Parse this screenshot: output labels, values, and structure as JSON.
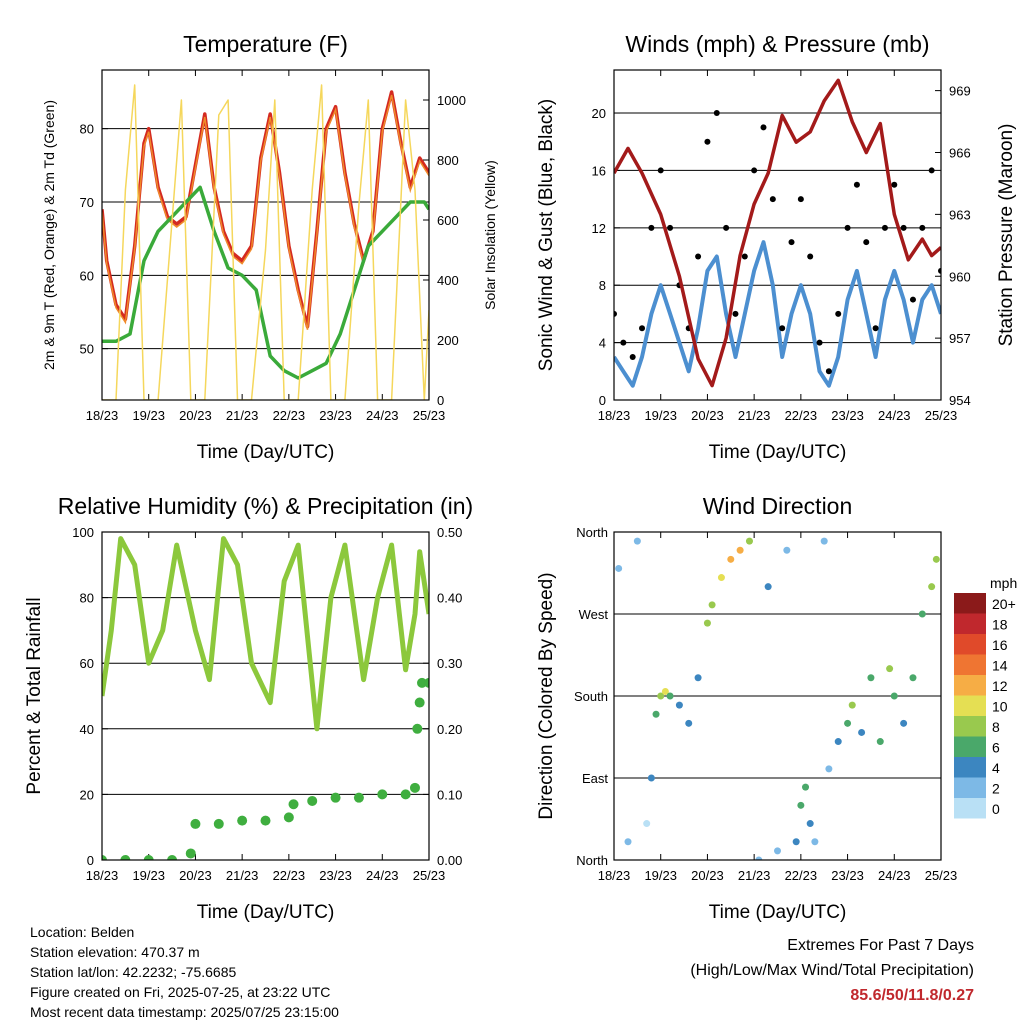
{
  "footer": {
    "location": "Location: Belden",
    "elevation": "Station elevation: 470.37 m",
    "latlon": "Station lat/lon: 42.2232; -75.6685",
    "created": "Figure created on Fri, 2025-07-25, at 23:22 UTC",
    "recent": "Most recent data timestamp: 2025/07/25 23:15:00"
  },
  "extremes": {
    "title": "Extremes For Past 7 Days",
    "subtitle": "(High/Low/Max Wind/Total Precipitation)",
    "values": "85.6/50/11.8/0.27"
  },
  "colors": {
    "temp2m": "#d42a20",
    "temp9m": "#f08a2a",
    "dewpoint": "#3aaa3a",
    "solar": "#f5d75c",
    "wind": "#4c8fd0",
    "gust": "#000000",
    "pressure": "#a31a1a",
    "rh": "#8cc83c",
    "precip": "#3fae3f"
  },
  "chart_data": [
    {
      "type": "line",
      "title": "Temperature (F)",
      "xlabel": "Time (Day/UTC)",
      "ylabel": "2m & 9m T (Red, Orange) & 2m Td (Green)",
      "y2label": "Solar Insolation (Yellow)",
      "x_ticks": [
        "18/23",
        "19/23",
        "20/23",
        "21/23",
        "22/23",
        "23/23",
        "24/23",
        "25/23"
      ],
      "ylim": [
        43,
        88
      ],
      "y_ticks": [
        50,
        60,
        70,
        80
      ],
      "y2lim": [
        0,
        1100
      ],
      "y2_ticks": [
        0,
        200,
        400,
        600,
        800,
        1000
      ],
      "series": [
        {
          "key": "t2m",
          "axis": "y",
          "x": [
            0,
            0.1,
            0.3,
            0.5,
            0.7,
            0.9,
            1.0,
            1.2,
            1.4,
            1.6,
            1.8,
            2.0,
            2.2,
            2.4,
            2.6,
            2.8,
            3.0,
            3.2,
            3.4,
            3.6,
            3.8,
            4.0,
            4.2,
            4.4,
            4.6,
            4.8,
            5.0,
            5.2,
            5.4,
            5.6,
            5.8,
            6.0,
            6.2,
            6.4,
            6.6,
            6.8,
            7.0
          ],
          "values": [
            69,
            62,
            56,
            54,
            64,
            78,
            80,
            72,
            68,
            67,
            68,
            75,
            82,
            72,
            66,
            63,
            62,
            64,
            76,
            82,
            74,
            64,
            58,
            53,
            66,
            80,
            83,
            74,
            67,
            62,
            66,
            80,
            85,
            78,
            72,
            76,
            74
          ]
        },
        {
          "key": "dew",
          "axis": "y",
          "x": [
            0,
            0.3,
            0.6,
            0.9,
            1.2,
            1.5,
            1.8,
            2.1,
            2.4,
            2.7,
            3.0,
            3.3,
            3.6,
            3.9,
            4.2,
            4.5,
            4.8,
            5.1,
            5.4,
            5.7,
            6.0,
            6.3,
            6.6,
            6.9,
            7.0
          ],
          "values": [
            51,
            51,
            52,
            62,
            66,
            68,
            70,
            72,
            66,
            61,
            60,
            58,
            49,
            47,
            46,
            47,
            48,
            52,
            58,
            64,
            66,
            68,
            70,
            70,
            69
          ]
        },
        {
          "key": "solar",
          "axis": "y2",
          "x": [
            0.0,
            0.3,
            0.5,
            0.7,
            0.9,
            1.2,
            1.5,
            1.7,
            1.9,
            2.2,
            2.5,
            2.7,
            2.9,
            3.2,
            3.5,
            3.7,
            3.9,
            4.2,
            4.5,
            4.7,
            4.9,
            5.2,
            5.5,
            5.7,
            5.9,
            6.2,
            6.5,
            6.7,
            6.9,
            7.0
          ],
          "values": [
            0,
            0,
            700,
            1050,
            0,
            0,
            600,
            1000,
            0,
            0,
            950,
            1000,
            0,
            0,
            500,
            1000,
            0,
            0,
            700,
            1050,
            0,
            0,
            650,
            1000,
            0,
            0,
            1000,
            700,
            0,
            300
          ]
        }
      ]
    },
    {
      "type": "line",
      "title": "Winds (mph) & Pressure (mb)",
      "xlabel": "Time (Day/UTC)",
      "ylabel": "Sonic Wind & Gust (Blue, Black)",
      "y2label": "Station Pressure (Maroon)",
      "x_ticks": [
        "18/23",
        "19/23",
        "20/23",
        "21/23",
        "22/23",
        "23/23",
        "24/23",
        "25/23"
      ],
      "ylim": [
        0,
        23
      ],
      "y_ticks": [
        0,
        4,
        8,
        12,
        16,
        20
      ],
      "y2lim": [
        954,
        970
      ],
      "y2_ticks": [
        954,
        957,
        960,
        963,
        966,
        969
      ],
      "series": [
        {
          "key": "wind",
          "axis": "y",
          "x": [
            0,
            0.2,
            0.4,
            0.6,
            0.8,
            1.0,
            1.2,
            1.4,
            1.6,
            1.8,
            2.0,
            2.2,
            2.4,
            2.6,
            2.8,
            3.0,
            3.2,
            3.4,
            3.6,
            3.8,
            4.0,
            4.2,
            4.4,
            4.6,
            4.8,
            5.0,
            5.2,
            5.4,
            5.6,
            5.8,
            6.0,
            6.2,
            6.4,
            6.6,
            6.8,
            7.0
          ],
          "values": [
            3,
            2,
            1,
            3,
            6,
            8,
            6,
            4,
            2,
            5,
            9,
            10,
            6,
            3,
            6,
            9,
            11,
            8,
            3,
            6,
            8,
            6,
            2,
            1,
            3,
            7,
            9,
            6,
            3,
            7,
            9,
            7,
            4,
            7,
            8,
            6
          ]
        },
        {
          "key": "gust",
          "axis": "y",
          "x": [
            0,
            0.2,
            0.4,
            0.6,
            0.8,
            1.0,
            1.2,
            1.4,
            1.6,
            1.8,
            2.0,
            2.2,
            2.4,
            2.6,
            2.8,
            3.0,
            3.2,
            3.4,
            3.6,
            3.8,
            4.0,
            4.2,
            4.4,
            4.6,
            4.8,
            5.0,
            5.2,
            5.4,
            5.6,
            5.8,
            6.0,
            6.2,
            6.4,
            6.6,
            6.8,
            7.0
          ],
          "values": [
            6,
            4,
            3,
            5,
            12,
            16,
            12,
            8,
            5,
            10,
            18,
            20,
            12,
            6,
            10,
            16,
            19,
            14,
            5,
            11,
            14,
            10,
            4,
            2,
            6,
            12,
            15,
            11,
            5,
            12,
            15,
            12,
            7,
            12,
            16,
            9
          ]
        },
        {
          "key": "pressure",
          "axis": "y2",
          "x": [
            0,
            0.3,
            0.6,
            1.0,
            1.4,
            1.8,
            2.1,
            2.4,
            2.7,
            3.0,
            3.3,
            3.6,
            3.9,
            4.2,
            4.5,
            4.8,
            5.1,
            5.4,
            5.7,
            6.0,
            6.3,
            6.6,
            6.8,
            7.0
          ],
          "values": [
            965,
            966.2,
            965,
            963,
            960,
            956,
            954.7,
            957,
            961,
            963.5,
            965,
            967.8,
            966.5,
            967,
            968.5,
            969.5,
            967.5,
            966,
            967.4,
            963,
            960.8,
            961.8,
            961,
            961.4
          ]
        }
      ]
    },
    {
      "type": "line",
      "title": "Relative Humidity (%) & Precipitation (in)",
      "xlabel": "Time (Day/UTC)",
      "ylabel": "Percent & Total Rainfall",
      "x_ticks": [
        "18/23",
        "19/23",
        "20/23",
        "21/23",
        "22/23",
        "23/23",
        "24/23",
        "25/23"
      ],
      "ylim": [
        0,
        100
      ],
      "y_ticks": [
        0,
        20,
        40,
        60,
        80,
        100
      ],
      "y2lim": [
        0,
        0.5
      ],
      "y2_ticks": [
        "0.00",
        "0.10",
        "0.20",
        "0.30",
        "0.40",
        "0.50"
      ],
      "series": [
        {
          "key": "rh",
          "axis": "y",
          "x": [
            0,
            0.2,
            0.4,
            0.7,
            1.0,
            1.3,
            1.6,
            2.0,
            2.3,
            2.6,
            2.9,
            3.2,
            3.6,
            3.9,
            4.2,
            4.6,
            4.9,
            5.2,
            5.6,
            5.9,
            6.2,
            6.5,
            6.7,
            6.8,
            7.0
          ],
          "values": [
            50,
            70,
            98,
            90,
            60,
            70,
            96,
            70,
            55,
            98,
            90,
            60,
            48,
            85,
            96,
            40,
            80,
            96,
            55,
            80,
            96,
            58,
            75,
            94,
            75
          ]
        },
        {
          "key": "precip",
          "axis": "y2",
          "x": [
            0,
            0.5,
            1.0,
            1.5,
            1.9,
            2.0,
            2.5,
            3.0,
            3.5,
            4.0,
            4.1,
            4.5,
            5.0,
            5.5,
            6.0,
            6.5,
            6.7,
            6.75,
            6.8,
            6.85,
            7.0
          ],
          "values": [
            0,
            0,
            0,
            0,
            0.01,
            0.055,
            0.055,
            0.06,
            0.06,
            0.065,
            0.085,
            0.09,
            0.095,
            0.095,
            0.1,
            0.1,
            0.11,
            0.2,
            0.24,
            0.27,
            0.27
          ]
        }
      ]
    },
    {
      "type": "scatter",
      "title": "Wind Direction",
      "xlabel": "Time (Day/UTC)",
      "ylabel": "Direction (Colored By Speed)",
      "x_ticks": [
        "18/23",
        "19/23",
        "20/23",
        "21/23",
        "22/23",
        "23/23",
        "24/23",
        "25/23"
      ],
      "y_ticks": [
        "North",
        "East",
        "South",
        "West",
        "North"
      ],
      "ylim": [
        0,
        360
      ],
      "legend_title": "mph",
      "legend": [
        {
          "label": "20+",
          "color": "#8b1a1a"
        },
        {
          "label": "18",
          "color": "#c0282d"
        },
        {
          "label": "16",
          "color": "#e04a2a"
        },
        {
          "label": "14",
          "color": "#ef7532"
        },
        {
          "label": "12",
          "color": "#f6ad45"
        },
        {
          "label": "10",
          "color": "#e5df53"
        },
        {
          "label": "8",
          "color": "#99c94e"
        },
        {
          "label": "6",
          "color": "#4aa86a"
        },
        {
          "label": "4",
          "color": "#3c86c0"
        },
        {
          "label": "2",
          "color": "#7db9e6"
        },
        {
          "label": "0",
          "color": "#b9e0f5"
        }
      ],
      "series": [
        {
          "key": "dir",
          "x": [
            0.1,
            0.3,
            0.5,
            0.7,
            0.8,
            0.9,
            1.0,
            1.1,
            1.2,
            1.4,
            1.6,
            1.8,
            2.0,
            2.1,
            2.3,
            2.5,
            2.7,
            2.9,
            3.1,
            3.3,
            3.5,
            3.7,
            3.9,
            4.0,
            4.1,
            4.2,
            4.3,
            4.5,
            4.6,
            4.8,
            5.0,
            5.1,
            5.3,
            5.5,
            5.7,
            5.9,
            6.0,
            6.2,
            6.4,
            6.6,
            6.8,
            6.9
          ],
          "values": [
            320,
            20,
            350,
            40,
            90,
            160,
            180,
            185,
            180,
            170,
            150,
            200,
            260,
            280,
            310,
            330,
            340,
            350,
            0,
            300,
            10,
            340,
            20,
            60,
            80,
            40,
            20,
            350,
            100,
            130,
            150,
            170,
            140,
            200,
            130,
            210,
            180,
            150,
            200,
            270,
            300,
            330
          ],
          "speeds": [
            2,
            1,
            1,
            0,
            3,
            5,
            8,
            10,
            6,
            4,
            3,
            4,
            7,
            8,
            9,
            11,
            12,
            8,
            2,
            3,
            1,
            2,
            3,
            5,
            6,
            4,
            2,
            1,
            2,
            4,
            6,
            7,
            4,
            6,
            5,
            7,
            6,
            4,
            5,
            6,
            8,
            7
          ]
        }
      ]
    }
  ]
}
